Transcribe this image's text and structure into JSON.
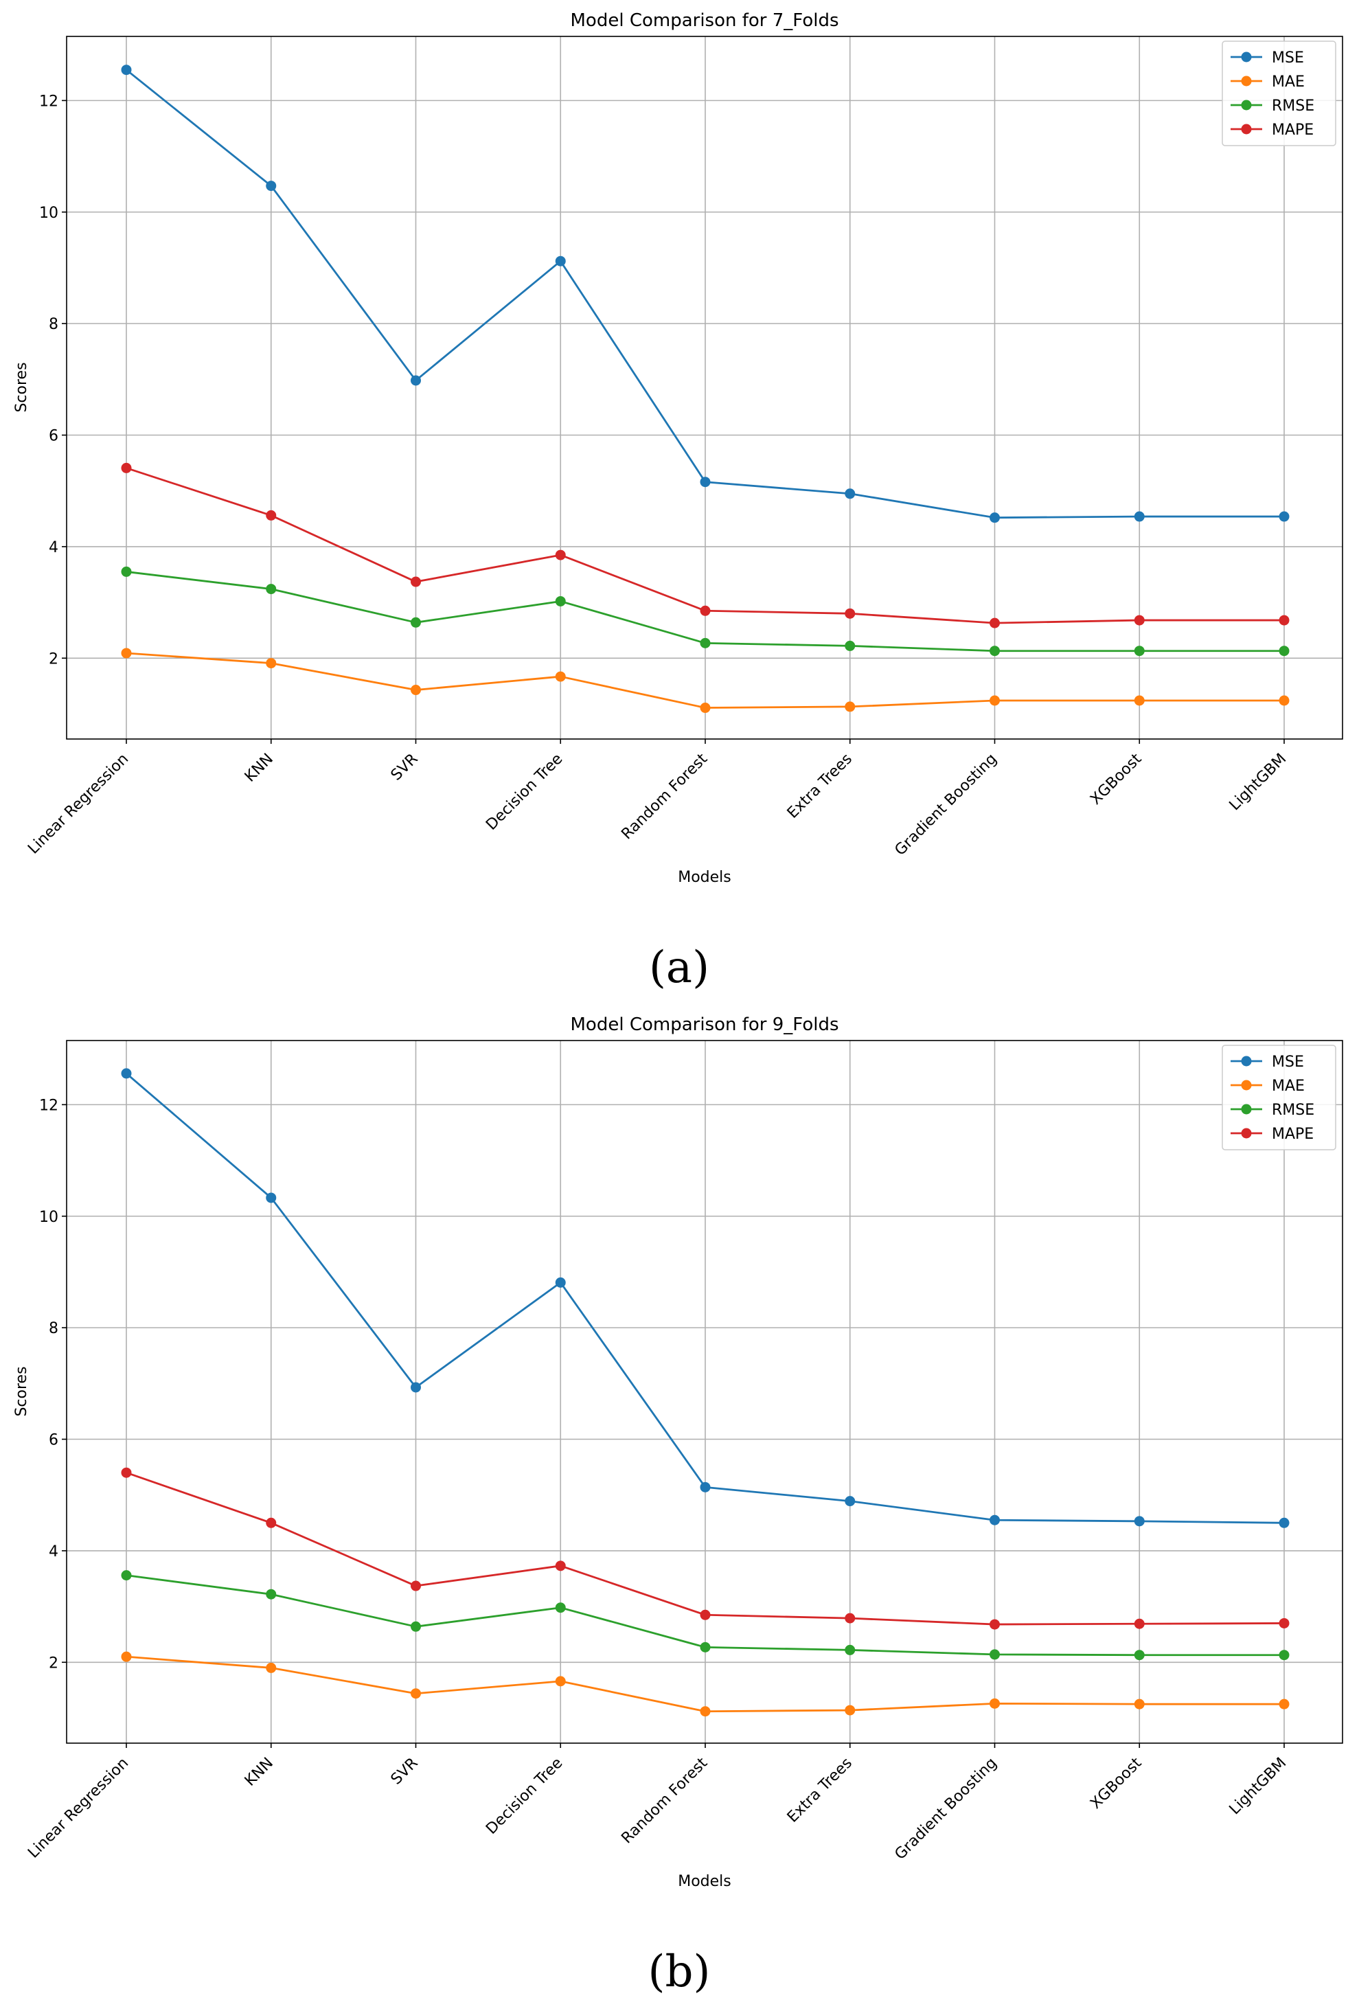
{
  "chart_data": [
    {
      "type": "line",
      "title": "Model Comparison for 7_Folds",
      "xlabel": "Models",
      "ylabel": "Scores",
      "categories": [
        "Linear Regression",
        "KNN",
        "SVR",
        "Decision Tree",
        "Random Forest",
        "Extra Trees",
        "Gradient Boosting",
        "XGBoost",
        "LightGBM"
      ],
      "ylim": [
        0.55,
        13.15
      ],
      "yticks": [
        2,
        4,
        6,
        8,
        10,
        12
      ],
      "grid": true,
      "legend": "top-right",
      "panel_label": "(a)",
      "series": [
        {
          "name": "MSE",
          "color": "#1f77b4",
          "values": [
            12.55,
            10.47,
            6.98,
            9.12,
            5.16,
            4.95,
            4.52,
            4.54,
            4.54
          ]
        },
        {
          "name": "MAE",
          "color": "#ff7f0e",
          "values": [
            2.09,
            1.91,
            1.43,
            1.67,
            1.11,
            1.13,
            1.24,
            1.24,
            1.24
          ]
        },
        {
          "name": "RMSE",
          "color": "#2ca02c",
          "values": [
            3.55,
            3.24,
            2.64,
            3.02,
            2.27,
            2.22,
            2.13,
            2.13,
            2.13
          ]
        },
        {
          "name": "MAPE",
          "color": "#d62728",
          "values": [
            5.41,
            4.56,
            3.37,
            3.85,
            2.85,
            2.8,
            2.63,
            2.68,
            2.68
          ]
        }
      ]
    },
    {
      "type": "line",
      "title": "Model Comparison for 9_Folds",
      "xlabel": "Models",
      "ylabel": "Scores",
      "categories": [
        "Linear Regression",
        "KNN",
        "SVR",
        "Decision Tree",
        "Random Forest",
        "Extra Trees",
        "Gradient Boosting",
        "XGBoost",
        "LightGBM"
      ],
      "ylim": [
        0.55,
        13.15
      ],
      "yticks": [
        2,
        4,
        6,
        8,
        10,
        12
      ],
      "grid": true,
      "legend": "top-right",
      "panel_label": "(b)",
      "series": [
        {
          "name": "MSE",
          "color": "#1f77b4",
          "values": [
            12.56,
            10.33,
            6.93,
            8.81,
            5.14,
            4.89,
            4.55,
            4.53,
            4.5
          ]
        },
        {
          "name": "MAE",
          "color": "#ff7f0e",
          "values": [
            2.1,
            1.9,
            1.44,
            1.66,
            1.12,
            1.14,
            1.26,
            1.25,
            1.25
          ]
        },
        {
          "name": "RMSE",
          "color": "#2ca02c",
          "values": [
            3.56,
            3.22,
            2.64,
            2.98,
            2.27,
            2.22,
            2.14,
            2.13,
            2.13
          ]
        },
        {
          "name": "MAPE",
          "color": "#d62728",
          "values": [
            5.4,
            4.5,
            3.37,
            3.73,
            2.85,
            2.79,
            2.68,
            2.69,
            2.7
          ]
        }
      ]
    }
  ]
}
